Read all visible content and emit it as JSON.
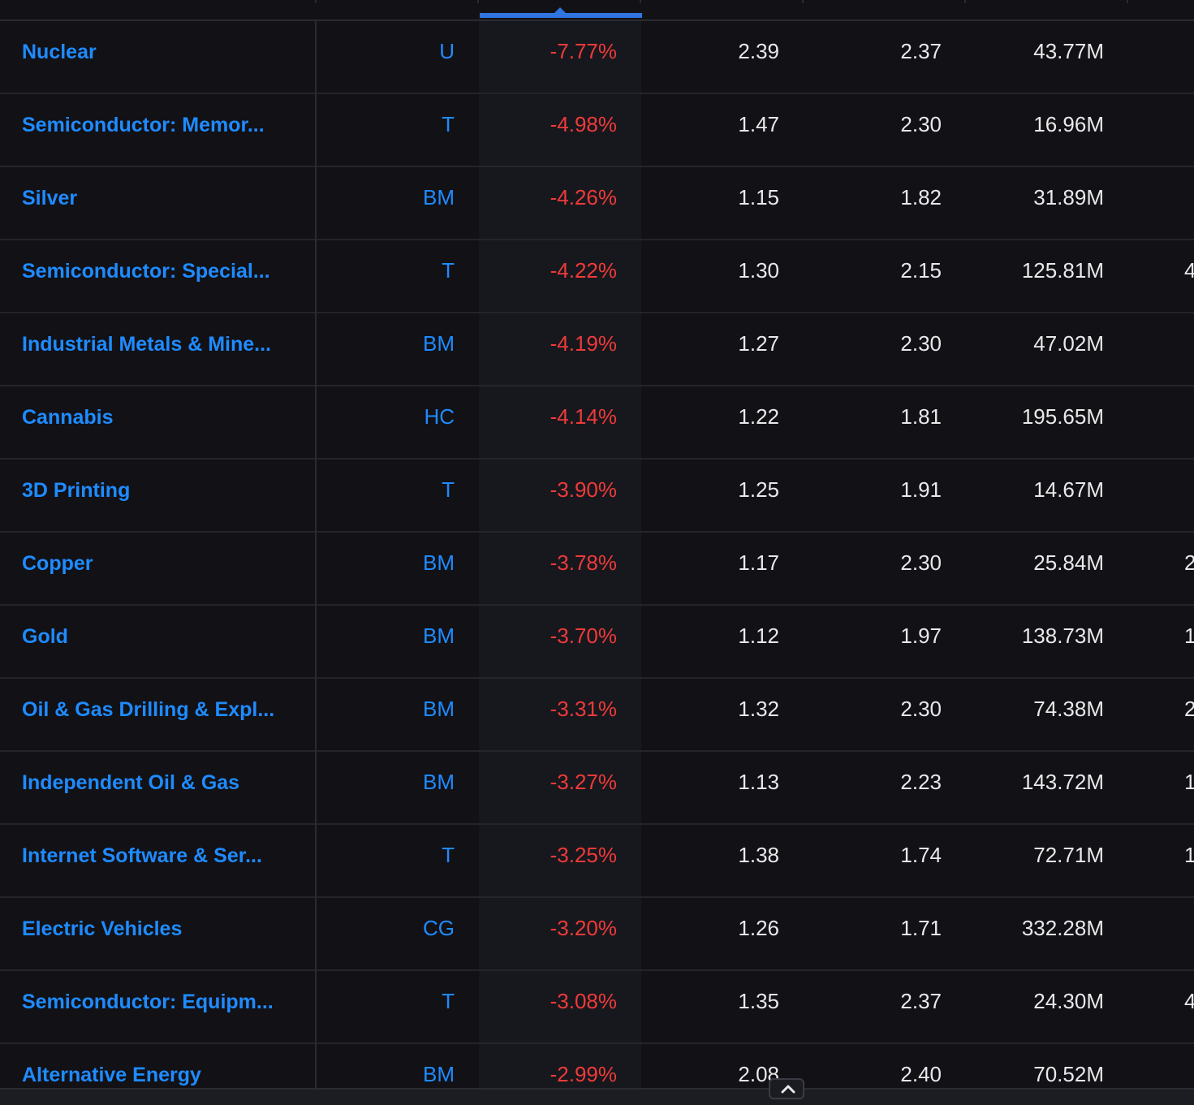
{
  "table": {
    "rows": [
      {
        "name": "Nuclear",
        "sector": "U",
        "change": "-7.77%",
        "col4": "2.39",
        "col5": "2.37",
        "col6": "43.77M",
        "col7": ""
      },
      {
        "name": "Semiconductor: Memor...",
        "sector": "T",
        "change": "-4.98%",
        "col4": "1.47",
        "col5": "2.30",
        "col6": "16.96M",
        "col7": ""
      },
      {
        "name": "Silver",
        "sector": "BM",
        "change": "-4.26%",
        "col4": "1.15",
        "col5": "1.82",
        "col6": "31.89M",
        "col7": ""
      },
      {
        "name": "Semiconductor: Special...",
        "sector": "T",
        "change": "-4.22%",
        "col4": "1.30",
        "col5": "2.15",
        "col6": "125.81M",
        "col7": "4"
      },
      {
        "name": "Industrial Metals & Mine...",
        "sector": "BM",
        "change": "-4.19%",
        "col4": "1.27",
        "col5": "2.30",
        "col6": "47.02M",
        "col7": ""
      },
      {
        "name": "Cannabis",
        "sector": "HC",
        "change": "-4.14%",
        "col4": "1.22",
        "col5": "1.81",
        "col6": "195.65M",
        "col7": ""
      },
      {
        "name": "3D Printing",
        "sector": "T",
        "change": "-3.90%",
        "col4": "1.25",
        "col5": "1.91",
        "col6": "14.67M",
        "col7": ""
      },
      {
        "name": "Copper",
        "sector": "BM",
        "change": "-3.78%",
        "col4": "1.17",
        "col5": "2.30",
        "col6": "25.84M",
        "col7": "2"
      },
      {
        "name": "Gold",
        "sector": "BM",
        "change": "-3.70%",
        "col4": "1.12",
        "col5": "1.97",
        "col6": "138.73M",
        "col7": "1"
      },
      {
        "name": "Oil & Gas Drilling & Expl...",
        "sector": "BM",
        "change": "-3.31%",
        "col4": "1.32",
        "col5": "2.30",
        "col6": "74.38M",
        "col7": "2"
      },
      {
        "name": "Independent Oil & Gas",
        "sector": "BM",
        "change": "-3.27%",
        "col4": "1.13",
        "col5": "2.23",
        "col6": "143.72M",
        "col7": "1"
      },
      {
        "name": "Internet Software & Ser...",
        "sector": "T",
        "change": "-3.25%",
        "col4": "1.38",
        "col5": "1.74",
        "col6": "72.71M",
        "col7": "1"
      },
      {
        "name": "Electric Vehicles",
        "sector": "CG",
        "change": "-3.20%",
        "col4": "1.26",
        "col5": "1.71",
        "col6": "332.28M",
        "col7": ""
      },
      {
        "name": "Semiconductor: Equipm...",
        "sector": "T",
        "change": "-3.08%",
        "col4": "1.35",
        "col5": "2.37",
        "col6": "24.30M",
        "col7": "4"
      },
      {
        "name": "Alternative Energy",
        "sector": "BM",
        "change": "-2.99%",
        "col4": "2.08",
        "col5": "2.40",
        "col6": "70.52M",
        "col7": ""
      }
    ]
  },
  "icons": {
    "scroll_up": "chevron-up-icon"
  },
  "colors": {
    "background": "#111116",
    "link_blue": "#1f8bff",
    "negative_red": "#ef3a3a",
    "sort_accent": "#2f74e0",
    "text": "#e9e9ea"
  }
}
